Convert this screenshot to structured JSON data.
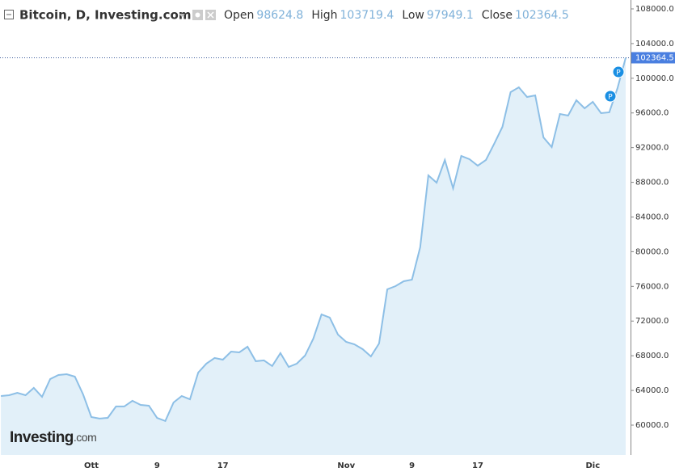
{
  "chart_data": {
    "type": "area",
    "title": "Bitcoin, D, Investing.com",
    "ohlc": [
      {
        "label": "Open",
        "value": 98624.8
      },
      {
        "label": "High",
        "value": 103719.4
      },
      {
        "label": "Low",
        "value": 97949.1
      },
      {
        "label": "Close",
        "value": 102364.5
      }
    ],
    "categories": [
      null,
      null,
      null,
      null,
      null,
      null,
      null,
      null,
      null,
      null,
      null,
      "Ott",
      null,
      null,
      null,
      null,
      null,
      null,
      null,
      "9",
      null,
      null,
      null,
      null,
      null,
      null,
      null,
      "17",
      null,
      null,
      null,
      null,
      null,
      null,
      null,
      null,
      null,
      null,
      null,
      null,
      null,
      null,
      "Nov",
      null,
      null,
      null,
      null,
      null,
      null,
      null,
      "9",
      null,
      null,
      null,
      null,
      null,
      null,
      null,
      "17",
      null,
      null,
      null,
      null,
      null,
      null,
      null,
      null,
      null,
      null,
      null,
      null,
      null,
      "Dic",
      null,
      null,
      null,
      null
    ],
    "series": [
      {
        "name": "Bitcoin",
        "color": "#8dbfe6",
        "fill": "#e2f0f9",
        "values": [
          63350,
          63450,
          63730,
          63450,
          64300,
          63260,
          65310,
          65780,
          65870,
          65590,
          63540,
          60930,
          60750,
          60840,
          62150,
          62150,
          62800,
          62330,
          62240,
          60840,
          60470,
          62610,
          63350,
          62980,
          66060,
          67090,
          67740,
          67550,
          68480,
          68390,
          69040,
          67370,
          67460,
          66810,
          68300,
          66710,
          67090,
          68020,
          69970,
          72770,
          72400,
          70440,
          69600,
          69320,
          68760,
          67920,
          69410,
          75660,
          76030,
          76590,
          76780,
          80510,
          88800,
          87960,
          90570,
          87310,
          91040,
          90660,
          89920,
          90570,
          92440,
          94390,
          98400,
          98960,
          97840,
          98030,
          93180,
          92060,
          95880,
          95700,
          97470,
          96540,
          97280,
          95980,
          96070,
          98870,
          102364.5
        ]
      }
    ],
    "ylim": [
      56550,
      109025
    ],
    "yticks": [
      {
        "value": 60000,
        "label": "60000.0"
      },
      {
        "value": 64000,
        "label": "64000.0"
      },
      {
        "value": 68000,
        "label": "68000.0"
      },
      {
        "value": 72000,
        "label": "72000.0"
      },
      {
        "value": 76000,
        "label": "76000.0"
      },
      {
        "value": 80000,
        "label": "80000.0"
      },
      {
        "value": 84000,
        "label": "84000.0"
      },
      {
        "value": 88000,
        "label": "88000.0"
      },
      {
        "value": 92000,
        "label": "92000.0"
      },
      {
        "value": 96000,
        "label": "96000.0"
      },
      {
        "value": 100000,
        "label": "100000.0"
      },
      {
        "value": 104000,
        "label": "104000.0"
      },
      {
        "value": 108000,
        "label": "108000.0"
      }
    ],
    "annotations": [
      "P",
      "P"
    ],
    "logo": {
      "name": "Investing",
      "suffix": ".com"
    }
  }
}
